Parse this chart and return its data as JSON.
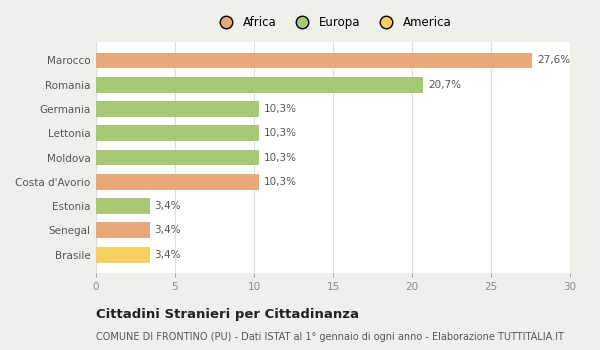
{
  "categories": [
    "Brasile",
    "Senegal",
    "Estonia",
    "Costa d'Avorio",
    "Moldova",
    "Lettonia",
    "Germania",
    "Romania",
    "Marocco"
  ],
  "values": [
    3.4,
    3.4,
    3.4,
    10.3,
    10.3,
    10.3,
    10.3,
    20.7,
    27.6
  ],
  "colors": [
    "#f5d060",
    "#e8a87a",
    "#a8c878",
    "#e8a87a",
    "#a8c878",
    "#a8c878",
    "#a8c878",
    "#a8c878",
    "#e8a87a"
  ],
  "labels": [
    "3,4%",
    "3,4%",
    "3,4%",
    "10,3%",
    "10,3%",
    "10,3%",
    "10,3%",
    "20,7%",
    "27,6%"
  ],
  "legend": [
    {
      "label": "Africa",
      "color": "#e8a87a"
    },
    {
      "label": "Europa",
      "color": "#a8c878"
    },
    {
      "label": "America",
      "color": "#f5d060"
    }
  ],
  "xlim": [
    0,
    30
  ],
  "xticks": [
    0,
    5,
    10,
    15,
    20,
    25,
    30
  ],
  "title": "Cittadini Stranieri per Cittadinanza",
  "subtitle": "COMUNE DI FRONTINO (PU) - Dati ISTAT al 1° gennaio di ogni anno - Elaborazione TUTTITALIA.IT",
  "outer_bg": "#f0f0eb",
  "chart_bg": "#ffffff",
  "title_fontsize": 9.5,
  "subtitle_fontsize": 7,
  "label_fontsize": 7.5,
  "tick_fontsize": 7.5,
  "ylabel_color": "#555555",
  "xlabel_color": "#888888",
  "label_color": "#555555",
  "grid_color": "#dddddd"
}
